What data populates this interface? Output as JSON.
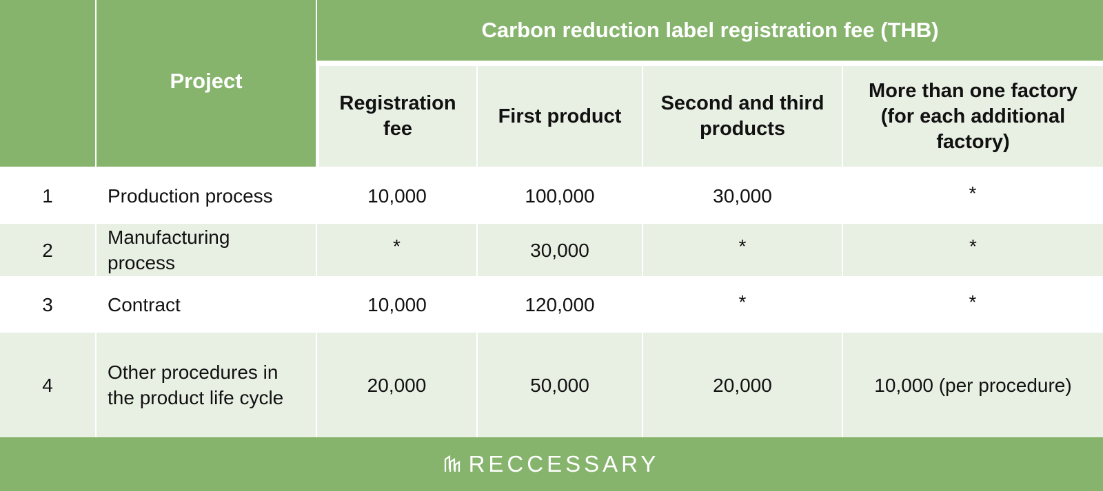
{
  "table": {
    "header": {
      "project": "Project",
      "group": "Carbon reduction label registration fee (THB)",
      "columns": [
        "Registration fee",
        "First product",
        "Second and third products",
        "More than one factory (for each additional factory)"
      ]
    },
    "rows": [
      {
        "no": "1",
        "project": "Production process",
        "reg": "10,000",
        "first": "100,000",
        "second": "30,000",
        "more": "*"
      },
      {
        "no": "2",
        "project": "Manufacturing process",
        "reg": "*",
        "first": "30,000",
        "second": "*",
        "more": "*"
      },
      {
        "no": "3",
        "project": "Contract",
        "reg": "10,000",
        "first": "120,000",
        "second": "*",
        "more": "*"
      },
      {
        "no": "4",
        "project": "Other procedures in the product life cycle",
        "reg": "20,000",
        "first": "50,000",
        "second": "20,000",
        "more": "10,000 (per procedure)"
      }
    ]
  },
  "footer": {
    "brand": "RECCESSARY",
    "logo_icon": "reccessary-logo-icon"
  },
  "colors": {
    "header_green": "#86b46d",
    "subheader_bg": "#e8efe3",
    "row_shade": "#e8efe3",
    "text": "#111111"
  }
}
